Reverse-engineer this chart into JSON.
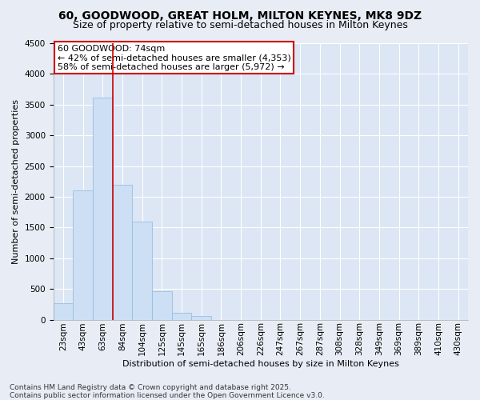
{
  "title": "60, GOODWOOD, GREAT HOLM, MILTON KEYNES, MK8 9DZ",
  "subtitle": "Size of property relative to semi-detached houses in Milton Keynes",
  "xlabel": "Distribution of semi-detached houses by size in Milton Keynes",
  "ylabel": "Number of semi-detached properties",
  "footnote": "Contains HM Land Registry data © Crown copyright and database right 2025.\nContains public sector information licensed under the Open Government Licence v3.0.",
  "categories": [
    "23sqm",
    "43sqm",
    "63sqm",
    "84sqm",
    "104sqm",
    "125sqm",
    "145sqm",
    "165sqm",
    "186sqm",
    "206sqm",
    "226sqm",
    "247sqm",
    "267sqm",
    "287sqm",
    "308sqm",
    "328sqm",
    "349sqm",
    "369sqm",
    "389sqm",
    "410sqm",
    "430sqm"
  ],
  "values": [
    270,
    2100,
    3620,
    2200,
    1600,
    460,
    110,
    55,
    0,
    0,
    0,
    0,
    0,
    0,
    0,
    0,
    0,
    0,
    0,
    0,
    0
  ],
  "bar_color": "#ccdff5",
  "bar_edge_color": "#9abfdf",
  "vline_position": 2.5,
  "vline_color": "#cc0000",
  "annotation_text": "60 GOODWOOD: 74sqm\n← 42% of semi-detached houses are smaller (4,353)\n58% of semi-detached houses are larger (5,972) →",
  "annotation_box_facecolor": "#ffffff",
  "annotation_box_edgecolor": "#cc0000",
  "ylim": [
    0,
    4500
  ],
  "yticks": [
    0,
    500,
    1000,
    1500,
    2000,
    2500,
    3000,
    3500,
    4000,
    4500
  ],
  "background_color": "#e8edf5",
  "plot_background": "#dce6f4",
  "grid_color": "#ffffff",
  "title_fontsize": 10,
  "subtitle_fontsize": 9,
  "axis_label_fontsize": 8,
  "tick_fontsize": 7.5,
  "annotation_fontsize": 8,
  "footnote_fontsize": 6.5
}
